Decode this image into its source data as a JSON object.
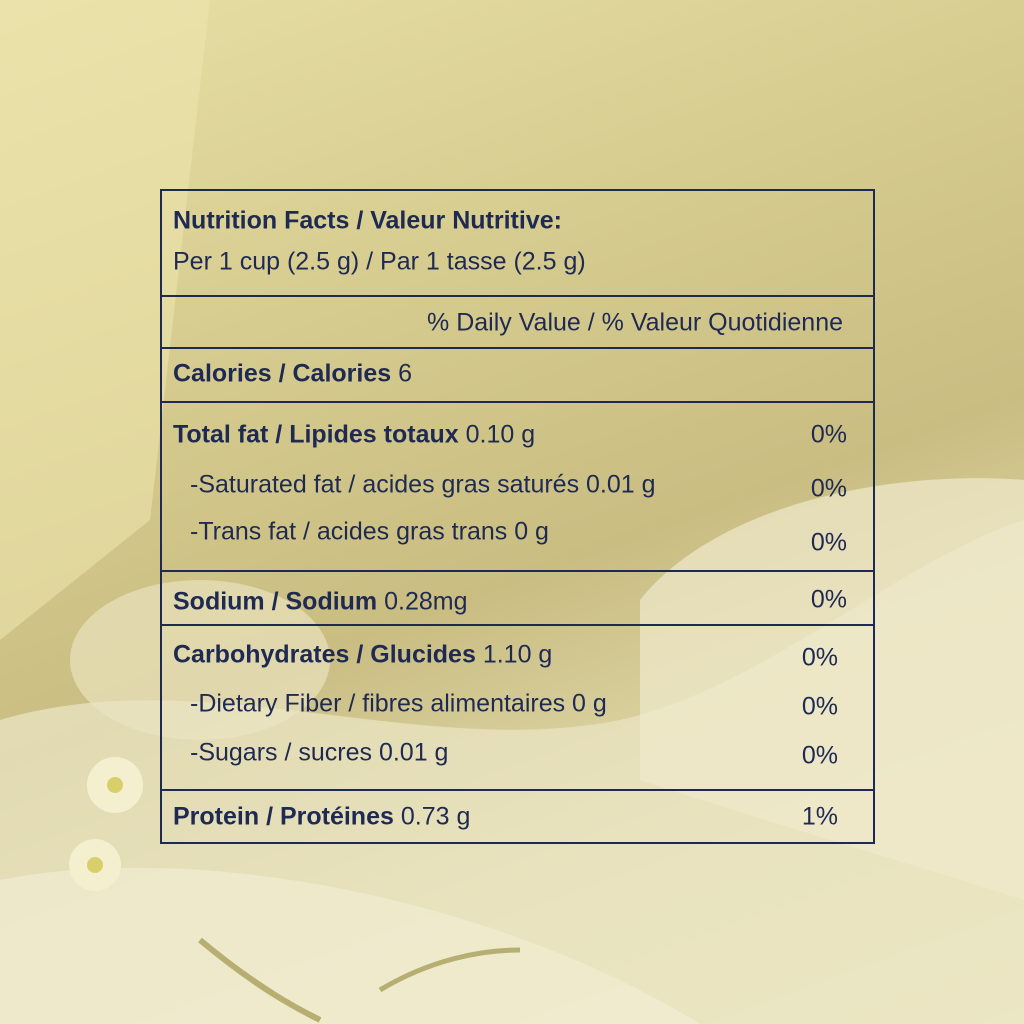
{
  "header": {
    "title": "Nutrition Facts /  Valeur Nutritive:",
    "serving": "Per 1 cup (2.5 g) / Par 1 tasse (2.5 g)"
  },
  "daily_value_header": "% Daily Value / % Valeur Quotidienne",
  "rows": [
    {
      "name": "Calories / Calories",
      "amount": "6"
    },
    {
      "name": "Total fat / Lipides totaux",
      "amount": "0.10 g",
      "percent": "0%"
    },
    {
      "text": "-Saturated fat / acides gras saturés 0.01 g",
      "percent": "0%"
    },
    {
      "text": "-Trans fat / acides gras trans 0 g",
      "percent": "0%"
    },
    {
      "name": "Sodium / Sodium",
      "amount": "0.28mg",
      "percent": "0%"
    },
    {
      "name": "Carbohydrates / Glucides",
      "amount": "1.10 g",
      "percent": "0%"
    },
    {
      "text": "-Dietary Fiber / fibres alimentaires 0 g",
      "percent": "0%"
    },
    {
      "text": "-Sugars / sucres 0.01 g",
      "percent": "0%"
    },
    {
      "name": "Protein / Protéines",
      "amount": "0.73 g",
      "percent": "1%"
    }
  ]
}
